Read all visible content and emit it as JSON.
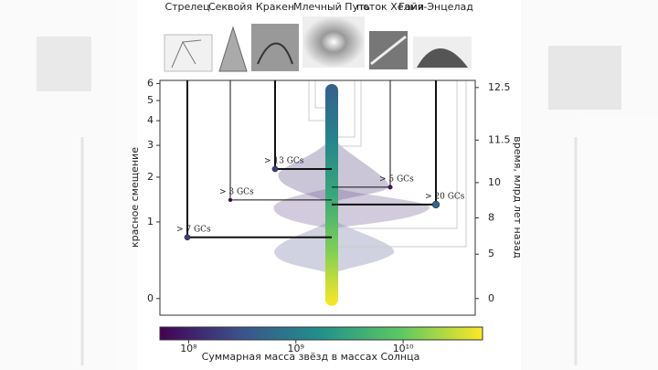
{
  "chart_data": {
    "type": "merger-tree",
    "categories": [
      "Стрелец",
      "Секвойя",
      "Кракен",
      "Млечный Путь",
      "поток Хелми",
      "Гайя-Энцелад"
    ],
    "z": [
      0.74,
      1.44,
      2.23,
      null,
      1.74,
      1.34
    ],
    "mass": [
      200000000,
      50000000,
      200000000,
      null,
      80000000,
      500000000
    ],
    "labels": [
      "> 7 GCs",
      "> 3 GCs",
      "> 13 GCs",
      null,
      "> 5 GCs",
      "> 20 GCs"
    ],
    "ylabel": "красное смещение",
    "y2label": "время, млрд лет назад",
    "yscale": "log1p",
    "ylim": [
      -0.14,
      6.2
    ],
    "yticks": [
      0,
      1,
      2,
      3,
      4,
      5,
      6
    ],
    "y2ticks": [
      0,
      5,
      8,
      10,
      11.5,
      12.5
    ],
    "colormap": "viridis",
    "clim": [
      54000000,
      55000000000
    ],
    "cticks": [
      {
        "value": 100000000,
        "label": "10⁸"
      },
      {
        "value": 1000000000,
        "label": "10⁹"
      },
      {
        "value": 10000000000,
        "label": "10¹⁰"
      }
    ],
    "clabel": "Суммарная масса звёзд в массах Солнца"
  }
}
